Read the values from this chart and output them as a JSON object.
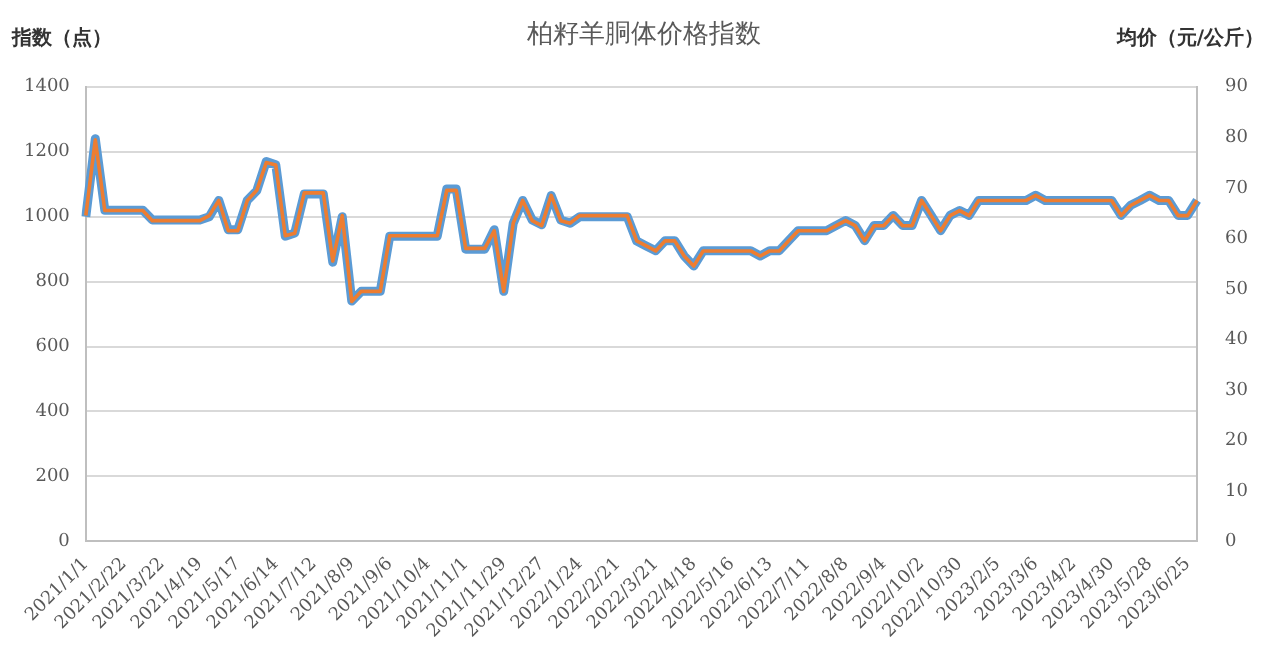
{
  "chart_data": {
    "type": "line",
    "title": "柏籽羊胴体价格指数",
    "ylabel": "指数（点）",
    "y2label": "均价（元/公斤）",
    "categories": [
      "2021/1/1",
      null,
      null,
      null,
      "2021/2/22",
      null,
      null,
      null,
      "2021/3/22",
      null,
      null,
      null,
      "2021/4/19",
      null,
      null,
      null,
      "2021/5/17",
      null,
      null,
      null,
      "2021/6/14",
      null,
      null,
      null,
      "2021/7/12",
      null,
      null,
      null,
      "2021/8/9",
      null,
      null,
      null,
      "2021/9/6",
      null,
      null,
      null,
      "2021/10/4",
      null,
      null,
      null,
      "2021/11/1",
      null,
      null,
      null,
      "2021/11/29",
      null,
      null,
      null,
      "2021/12/27",
      null,
      null,
      null,
      "2022/1/24",
      null,
      null,
      null,
      "2022/2/21",
      null,
      null,
      null,
      "2022/3/21",
      null,
      null,
      null,
      "2022/4/18",
      null,
      null,
      null,
      "2022/5/16",
      null,
      null,
      null,
      "2022/6/13",
      null,
      null,
      null,
      "2022/7/11",
      null,
      null,
      null,
      "2022/8/8",
      null,
      null,
      null,
      "2022/9/4",
      null,
      null,
      null,
      "2022/10/2",
      null,
      null,
      null,
      "2022/10/30",
      null,
      null,
      null,
      "2023/2/5",
      null,
      null,
      null,
      "2023/3/6",
      null,
      null,
      null,
      "2023/4/2",
      null,
      null,
      null,
      "2023/4/30",
      null,
      null,
      null,
      "2023/5/28",
      null,
      null,
      null,
      "2023/6/25",
      null
    ],
    "series": [
      {
        "color": "#5b9bd5",
        "values": [
          1000,
          1240,
          1020,
          1020,
          1020,
          1020,
          1020,
          990,
          990,
          990,
          990,
          990,
          990,
          1000,
          1050,
          960,
          960,
          1050,
          1080,
          1170,
          1160,
          940,
          950,
          1070,
          1070,
          1070,
          860,
          1000,
          740,
          770,
          770,
          770,
          940,
          940,
          940,
          940,
          940,
          940,
          1085,
          1085,
          900,
          900,
          900,
          960,
          770,
          980,
          1050,
          990,
          975,
          1065,
          990,
          980,
          1000,
          1000,
          1000,
          1000,
          1000,
          1000,
          925,
          910,
          895,
          926,
          926,
          879,
          848,
          895,
          895,
          895,
          895,
          895,
          895,
          879,
          895,
          895,
          926,
          957,
          957,
          957,
          957,
          973,
          988,
          973,
          926,
          973,
          973,
          1004,
          973,
          973,
          1050,
          1004,
          957,
          1004,
          1019,
          1004,
          1050,
          1050,
          1050,
          1050,
          1050,
          1050,
          1066,
          1050,
          1050,
          1050,
          1050,
          1050,
          1050,
          1050,
          1050,
          1004,
          1035,
          1050,
          1066,
          1050,
          1050,
          1004,
          1004,
          1050
        ]
      },
      {
        "color": "#ed7d31",
        "axis": "y2",
        "values": [
          64.5,
          79.5,
          65.5,
          65.5,
          65.5,
          65.5,
          65.5,
          63.5,
          63.5,
          63.5,
          63.5,
          63.5,
          63.5,
          64.5,
          67.5,
          61.5,
          61.5,
          67.5,
          69.5,
          75,
          74.5,
          60.5,
          61,
          69,
          69,
          69,
          55.5,
          64.5,
          47.5,
          49.5,
          49.5,
          49.5,
          60.5,
          60.5,
          60.5,
          60.5,
          60.5,
          60.5,
          69.5,
          69.5,
          58,
          58,
          58,
          61.5,
          49.5,
          63,
          67.5,
          63.5,
          62.5,
          68.5,
          63.5,
          63,
          64.5,
          64.5,
          64.5,
          64.5,
          64.5,
          64.5,
          59.5,
          58.5,
          57.5,
          59.5,
          59.5,
          56.5,
          54.5,
          57.5,
          57.5,
          57.5,
          57.5,
          57.5,
          57.5,
          56.5,
          57.5,
          57.5,
          59.5,
          61.5,
          61.5,
          61.5,
          61.5,
          62.5,
          63.5,
          62.5,
          59.5,
          62.5,
          62.5,
          64.5,
          62.5,
          62.5,
          67.5,
          64.5,
          61.5,
          64.5,
          65.5,
          64.5,
          67.5,
          67.5,
          67.5,
          67.5,
          67.5,
          67.5,
          68.5,
          67.5,
          67.5,
          67.5,
          67.5,
          67.5,
          67.5,
          67.5,
          67.5,
          64.5,
          66.5,
          67.5,
          68.5,
          67.5,
          67.5,
          64.5,
          64.5,
          67.5
        ]
      }
    ],
    "ylim": [
      0,
      1400
    ],
    "yticks": [
      0,
      200,
      400,
      600,
      800,
      1000,
      1200,
      1400
    ],
    "y2lim": [
      0,
      90
    ],
    "y2ticks": [
      0,
      10,
      20,
      30,
      40,
      50,
      60,
      70,
      80,
      90
    ],
    "grid": "y",
    "legend": false,
    "marker": "none",
    "line_style": "solid"
  }
}
